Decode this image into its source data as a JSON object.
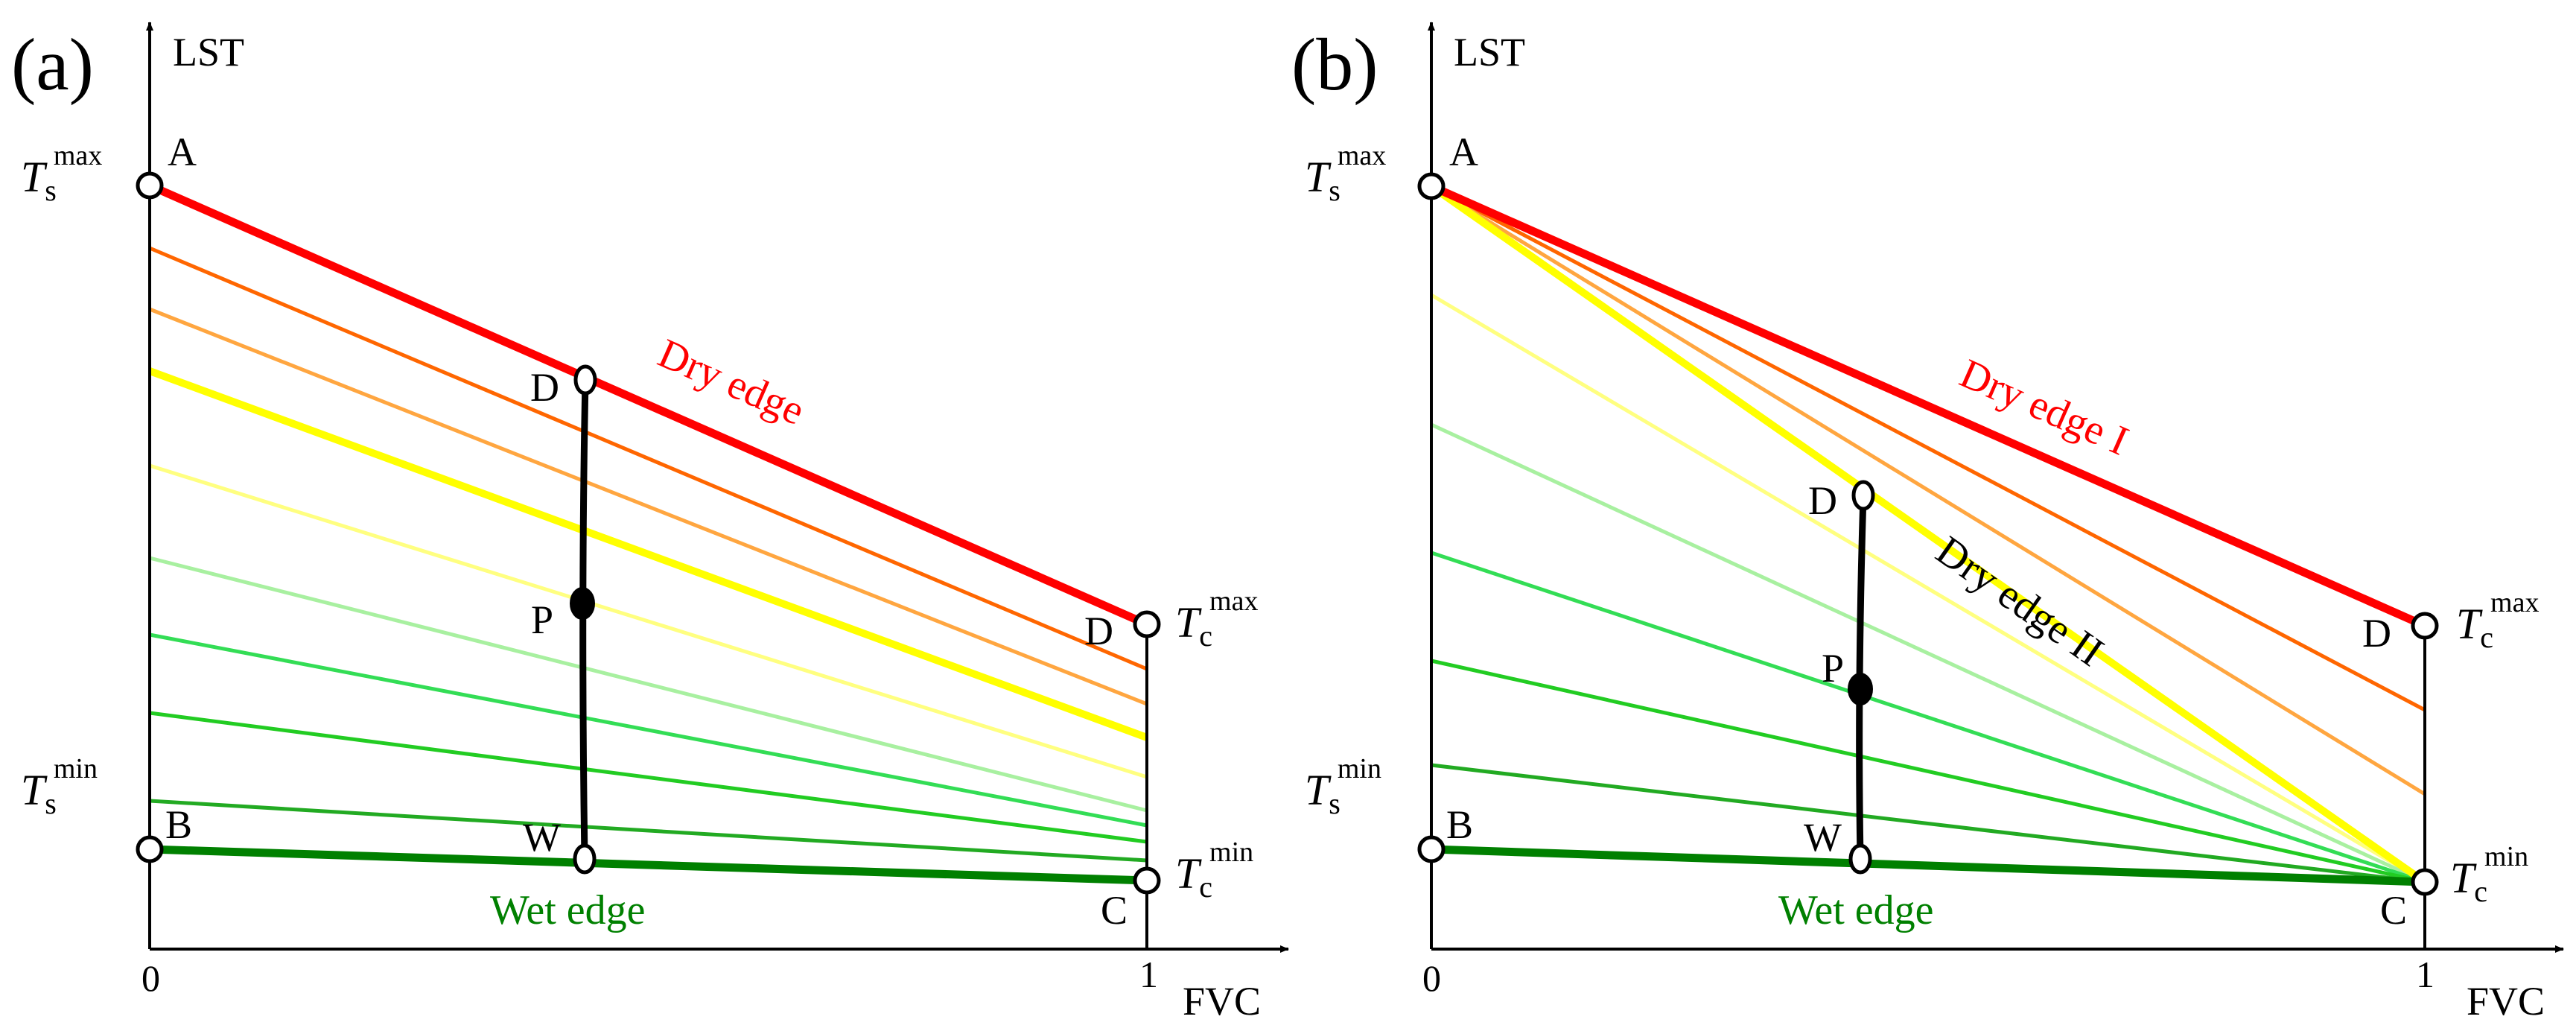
{
  "colors": {
    "axis": "#000000",
    "dry": "#ff0000",
    "wet": "#008000",
    "dry_label": "#ff0000",
    "wet_label": "#008000",
    "dry2": "#ffff00",
    "dry2_label": "#000000",
    "iso_a": [
      "#ff6600",
      "#ffa640",
      "#ffff00",
      "#ffff80",
      "#a8f0a0",
      "#33dd55",
      "#22cc22",
      "#22aa22"
    ],
    "iso_b": [
      "#ff6600",
      "#ffa640",
      "#ffff80",
      "#a8f0a0",
      "#33dd55",
      "#22cc22",
      "#22aa22"
    ]
  },
  "panel_a": {
    "label": "(a)",
    "y_axis": "LST",
    "x_axis": "FVC",
    "x_tick_0": "0",
    "x_tick_1": "1",
    "ts_sym": "T",
    "ts_sub": "s",
    "ts_max_sup": "max",
    "ts_min_sup": "min",
    "tc_sym": "T",
    "tc_sub": "c",
    "tc_max_sup": "max",
    "tc_min_sup": "min",
    "point_A": "A",
    "point_B": "B",
    "point_C": "C",
    "point_D_end": "D",
    "point_D_mid": "D",
    "point_P": "P",
    "point_W": "W",
    "dry_edge": "Dry edge",
    "wet_edge": "Wet edge"
  },
  "panel_b": {
    "label": "(b)",
    "y_axis": "LST",
    "x_axis": "FVC",
    "x_tick_0": "0",
    "x_tick_1": "1",
    "ts_sym": "T",
    "ts_sub": "s",
    "ts_max_sup": "max",
    "ts_min_sup": "min",
    "tc_sym": "T",
    "tc_sub": "c",
    "tc_max_sup": "max",
    "tc_min_sup": "min",
    "point_A": "A",
    "point_B": "B",
    "point_C": "C",
    "point_D_end": "D",
    "point_D_mid": "D",
    "point_P": "P",
    "point_W": "W",
    "dry_edge_1": "Dry edge I",
    "dry_edge_2": "Dry edge II",
    "wet_edge": "Wet edge"
  }
}
